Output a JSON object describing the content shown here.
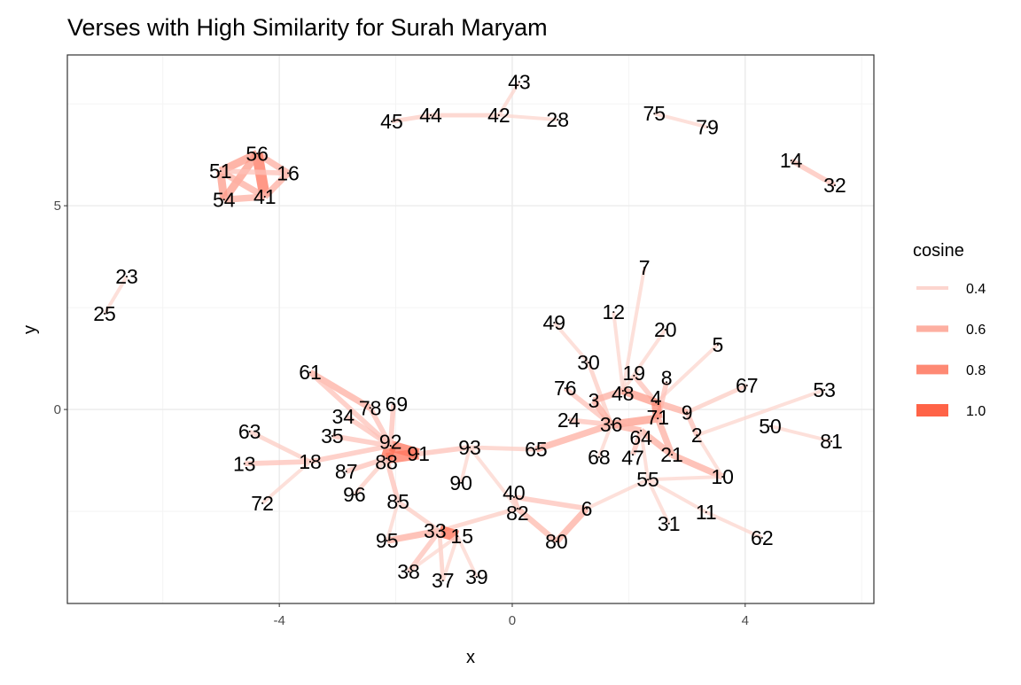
{
  "chart_data": {
    "type": "network",
    "title": "Verses with High Similarity for Surah Maryam",
    "xlabel": "x",
    "ylabel": "y",
    "xlim": [
      -7.64,
      6.21
    ],
    "ylim": [
      -4.76,
      8.7
    ],
    "x_ticks": [
      -4,
      0,
      4
    ],
    "y_ticks": [
      0,
      5
    ],
    "grid": true,
    "legend": {
      "title": "cosine",
      "position": "right",
      "entries": [
        {
          "label": "0.4",
          "value": 0.4
        },
        {
          "label": "0.6",
          "value": 0.6
        },
        {
          "label": "0.8",
          "value": 0.8
        },
        {
          "label": "1.0",
          "value": 1.0
        }
      ]
    },
    "edge_color_low": "#FCD5CE",
    "edge_color_high": "#FF6347",
    "nodes": [
      {
        "id": "43",
        "x": 0.12,
        "y": 8.04
      },
      {
        "id": "45",
        "x": -2.07,
        "y": 7.07
      },
      {
        "id": "44",
        "x": -1.4,
        "y": 7.22
      },
      {
        "id": "42",
        "x": -0.23,
        "y": 7.22
      },
      {
        "id": "28",
        "x": 0.78,
        "y": 7.11
      },
      {
        "id": "75",
        "x": 2.44,
        "y": 7.26
      },
      {
        "id": "79",
        "x": 3.35,
        "y": 6.93
      },
      {
        "id": "14",
        "x": 4.79,
        "y": 6.11
      },
      {
        "id": "32",
        "x": 5.54,
        "y": 5.5
      },
      {
        "id": "56",
        "x": -4.38,
        "y": 6.28
      },
      {
        "id": "51",
        "x": -5.01,
        "y": 5.85
      },
      {
        "id": "16",
        "x": -3.85,
        "y": 5.8
      },
      {
        "id": "54",
        "x": -4.95,
        "y": 5.15
      },
      {
        "id": "41",
        "x": -4.25,
        "y": 5.22
      },
      {
        "id": "23",
        "x": -6.62,
        "y": 3.26
      },
      {
        "id": "25",
        "x": -7.0,
        "y": 2.35
      },
      {
        "id": "7",
        "x": 2.27,
        "y": 3.48
      },
      {
        "id": "12",
        "x": 1.74,
        "y": 2.39
      },
      {
        "id": "49",
        "x": 0.72,
        "y": 2.13
      },
      {
        "id": "20",
        "x": 2.63,
        "y": 1.96
      },
      {
        "id": "5",
        "x": 3.53,
        "y": 1.59
      },
      {
        "id": "30",
        "x": 1.31,
        "y": 1.15
      },
      {
        "id": "19",
        "x": 2.09,
        "y": 0.83
      },
      {
        "id": "8",
        "x": 2.65,
        "y": 0.67
      },
      {
        "id": "67",
        "x": 4.03,
        "y": 0.59
      },
      {
        "id": "53",
        "x": 5.36,
        "y": 0.48
      },
      {
        "id": "76",
        "x": 0.91,
        "y": 0.52
      },
      {
        "id": "3",
        "x": 1.4,
        "y": 0.22
      },
      {
        "id": "48",
        "x": 1.9,
        "y": 0.46
      },
      {
        "id": "4",
        "x": 2.47,
        "y": 0.17
      },
      {
        "id": "9",
        "x": 3.0,
        "y": -0.07
      },
      {
        "id": "71",
        "x": 2.5,
        "y": -0.22
      },
      {
        "id": "24",
        "x": 0.97,
        "y": -0.26
      },
      {
        "id": "36",
        "x": 1.7,
        "y": -0.37
      },
      {
        "id": "64",
        "x": 2.21,
        "y": -0.52
      },
      {
        "id": "2",
        "x": 3.17,
        "y": -0.63
      },
      {
        "id": "50",
        "x": 4.43,
        "y": -0.41
      },
      {
        "id": "81",
        "x": 5.48,
        "y": -0.78
      },
      {
        "id": "65",
        "x": 0.41,
        "y": -0.98
      },
      {
        "id": "68",
        "x": 1.49,
        "y": -1.17
      },
      {
        "id": "47",
        "x": 2.07,
        "y": -1.11
      },
      {
        "id": "21",
        "x": 2.74,
        "y": -1.11
      },
      {
        "id": "10",
        "x": 3.61,
        "y": -1.65
      },
      {
        "id": "55",
        "x": 2.33,
        "y": -1.72
      },
      {
        "id": "11",
        "x": 3.33,
        "y": -2.52
      },
      {
        "id": "31",
        "x": 2.69,
        "y": -2.8
      },
      {
        "id": "62",
        "x": 4.29,
        "y": -3.15
      },
      {
        "id": "6",
        "x": 1.28,
        "y": -2.43
      },
      {
        "id": "80",
        "x": 0.76,
        "y": -3.24
      },
      {
        "id": "40",
        "x": 0.03,
        "y": -2.15
      },
      {
        "id": "82",
        "x": 0.09,
        "y": -2.43
      },
      {
        "id": "93",
        "x": -0.73,
        "y": -0.93
      },
      {
        "id": "90",
        "x": -0.88,
        "y": -1.8
      },
      {
        "id": "61",
        "x": -3.47,
        "y": 0.91
      },
      {
        "id": "78",
        "x": -2.44,
        "y": 0.04
      },
      {
        "id": "69",
        "x": -2.04,
        "y": 0.13
      },
      {
        "id": "34",
        "x": -2.85,
        "y": -0.17
      },
      {
        "id": "35",
        "x": -3.09,
        "y": -0.65
      },
      {
        "id": "92",
        "x": -2.09,
        "y": -0.89
      },
      {
        "id": "88",
        "x": -2.16,
        "y": -1.2
      },
      {
        "id": "91",
        "x": -1.61,
        "y": -1.09
      },
      {
        "id": "63",
        "x": -4.51,
        "y": -0.54
      },
      {
        "id": "18",
        "x": -3.47,
        "y": -1.28
      },
      {
        "id": "13",
        "x": -4.6,
        "y": -1.33
      },
      {
        "id": "87",
        "x": -2.85,
        "y": -1.52
      },
      {
        "id": "72",
        "x": -4.29,
        "y": -2.3
      },
      {
        "id": "96",
        "x": -2.71,
        "y": -2.09
      },
      {
        "id": "85",
        "x": -1.96,
        "y": -2.26
      },
      {
        "id": "95",
        "x": -2.15,
        "y": -3.22
      },
      {
        "id": "33",
        "x": -1.25,
        "y": -2.98
      },
      {
        "id": "15",
        "x": -0.94,
        "y": -3.11
      },
      {
        "id": "38",
        "x": -1.78,
        "y": -3.98
      },
      {
        "id": "37",
        "x": -1.19,
        "y": -4.2
      },
      {
        "id": "39",
        "x": -0.61,
        "y": -4.11
      }
    ],
    "edges": [
      [
        "43",
        "42",
        0.4
      ],
      [
        "42",
        "44",
        0.45
      ],
      [
        "44",
        "45",
        0.45
      ],
      [
        "42",
        "28",
        0.4
      ],
      [
        "75",
        "79",
        0.4
      ],
      [
        "14",
        "32",
        0.5
      ],
      [
        "56",
        "51",
        0.7
      ],
      [
        "56",
        "16",
        0.6
      ],
      [
        "56",
        "41",
        0.9
      ],
      [
        "56",
        "54",
        0.7
      ],
      [
        "51",
        "54",
        0.7
      ],
      [
        "51",
        "41",
        0.6
      ],
      [
        "54",
        "41",
        0.6
      ],
      [
        "16",
        "41",
        0.6
      ],
      [
        "51",
        "16",
        0.5
      ],
      [
        "23",
        "25",
        0.4
      ],
      [
        "7",
        "48",
        0.4
      ],
      [
        "12",
        "48",
        0.4
      ],
      [
        "49",
        "30",
        0.4
      ],
      [
        "30",
        "36",
        0.45
      ],
      [
        "20",
        "48",
        0.4
      ],
      [
        "5",
        "4",
        0.4
      ],
      [
        "19",
        "4",
        0.5
      ],
      [
        "8",
        "71",
        0.5
      ],
      [
        "67",
        "9",
        0.45
      ],
      [
        "53",
        "2",
        0.4
      ],
      [
        "50",
        "81",
        0.4
      ],
      [
        "9",
        "4",
        0.6
      ],
      [
        "3",
        "48",
        0.6
      ],
      [
        "48",
        "4",
        0.7
      ],
      [
        "36",
        "71",
        0.7
      ],
      [
        "36",
        "64",
        0.6
      ],
      [
        "4",
        "71",
        0.8
      ],
      [
        "76",
        "36",
        0.5
      ],
      [
        "24",
        "36",
        0.5
      ],
      [
        "3",
        "36",
        0.6
      ],
      [
        "65",
        "36",
        0.6
      ],
      [
        "65",
        "93",
        0.45
      ],
      [
        "93",
        "91",
        0.5
      ],
      [
        "91",
        "92",
        0.9
      ],
      [
        "92",
        "88",
        0.95
      ],
      [
        "88",
        "91",
        0.9
      ],
      [
        "64",
        "21",
        0.6
      ],
      [
        "71",
        "21",
        0.6
      ],
      [
        "21",
        "10",
        0.6
      ],
      [
        "2",
        "9",
        0.5
      ],
      [
        "2",
        "10",
        0.4
      ],
      [
        "47",
        "64",
        0.5
      ],
      [
        "68",
        "36",
        0.4
      ],
      [
        "55",
        "64",
        0.4
      ],
      [
        "55",
        "10",
        0.4
      ],
      [
        "55",
        "11",
        0.4
      ],
      [
        "55",
        "31",
        0.4
      ],
      [
        "11",
        "62",
        0.4
      ],
      [
        "55",
        "6",
        0.4
      ],
      [
        "6",
        "80",
        0.6
      ],
      [
        "80",
        "82",
        0.55
      ],
      [
        "6",
        "40",
        0.5
      ],
      [
        "82",
        "40",
        0.5
      ],
      [
        "82",
        "33",
        0.45
      ],
      [
        "33",
        "15",
        0.95
      ],
      [
        "95",
        "33",
        0.6
      ],
      [
        "38",
        "33",
        0.5
      ],
      [
        "37",
        "33",
        0.45
      ],
      [
        "39",
        "15",
        0.4
      ],
      [
        "38",
        "15",
        0.4
      ],
      [
        "37",
        "15",
        0.4
      ],
      [
        "85",
        "33",
        0.45
      ],
      [
        "85",
        "88",
        0.5
      ],
      [
        "96",
        "88",
        0.45
      ],
      [
        "87",
        "88",
        0.5
      ],
      [
        "18",
        "92",
        0.5
      ],
      [
        "13",
        "18",
        0.5
      ],
      [
        "63",
        "18",
        0.45
      ],
      [
        "72",
        "18",
        0.4
      ],
      [
        "35",
        "92",
        0.5
      ],
      [
        "34",
        "92",
        0.5
      ],
      [
        "78",
        "92",
        0.5
      ],
      [
        "69",
        "92",
        0.5
      ],
      [
        "61",
        "78",
        0.6
      ],
      [
        "61",
        "92",
        0.5
      ],
      [
        "90",
        "93",
        0.4
      ],
      [
        "93",
        "82",
        0.4
      ],
      [
        "85",
        "95",
        0.4
      ]
    ]
  }
}
